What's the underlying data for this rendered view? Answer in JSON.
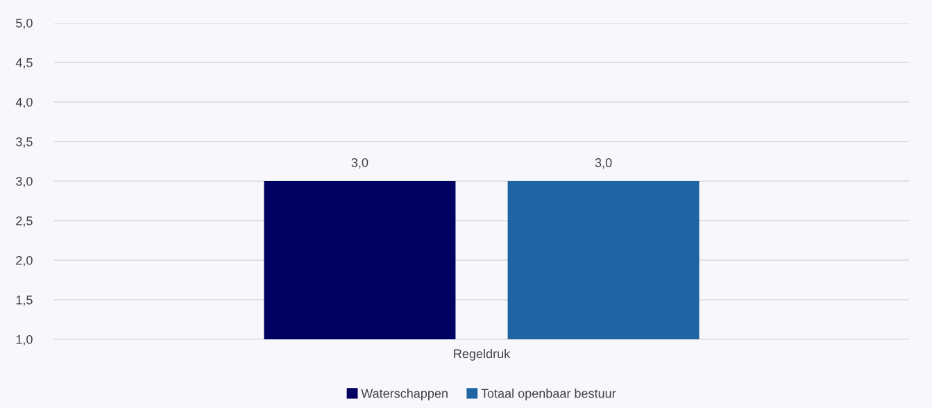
{
  "chart_data": {
    "type": "bar",
    "categories": [
      "Regeldruk"
    ],
    "series": [
      {
        "name": "Waterschappen",
        "color": "#000060",
        "values": [
          3.0
        ],
        "value_labels": [
          "3,0"
        ]
      },
      {
        "name": "Totaal openbaar bestuur",
        "color": "#1f65a3",
        "values": [
          3.0
        ],
        "value_labels": [
          "3,0"
        ]
      }
    ],
    "ylim": [
      1,
      5
    ],
    "yticks": [
      {
        "value": 1,
        "label": "1,0"
      },
      {
        "value": 1.5,
        "label": "1,5"
      },
      {
        "value": 2,
        "label": "2,0"
      },
      {
        "value": 2.5,
        "label": "2,5"
      },
      {
        "value": 3,
        "label": "3,0"
      },
      {
        "value": 3.5,
        "label": "3,5"
      },
      {
        "value": 4,
        "label": "4,0"
      },
      {
        "value": 4.5,
        "label": "4,5"
      },
      {
        "value": 5,
        "label": "5,0"
      }
    ],
    "grid": "y",
    "legend": "bottom"
  }
}
